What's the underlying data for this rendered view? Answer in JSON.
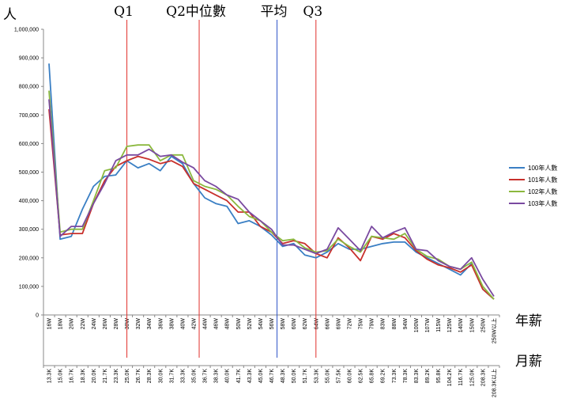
{
  "chart_data": {
    "type": "line",
    "y_unit_label": "人",
    "x_label_top": "年薪",
    "x_label_bottom": "月薪",
    "ylim": [
      0,
      1000000
    ],
    "y_ticks": [
      "0",
      "100,000",
      "200,000",
      "300,000",
      "400,000",
      "500,000",
      "600,000",
      "700,000",
      "800,000",
      "900,000",
      "1,000,000"
    ],
    "x_annual": [
      "16W",
      "18W",
      "20W",
      "22W",
      "24W",
      "26W",
      "28W",
      "30W",
      "32W",
      "34W",
      "36W",
      "38W",
      "40W",
      "42W",
      "44W",
      "46W",
      "48W",
      "50W",
      "52W",
      "54W",
      "56W",
      "58W",
      "60W",
      "62W",
      "64W",
      "66W",
      "69W",
      "72W",
      "75W",
      "79W",
      "83W",
      "88W",
      "94W",
      "100W",
      "107W",
      "115W",
      "125W",
      "140W",
      "150W",
      "250W",
      "250W以上"
    ],
    "x_monthly": [
      "13.3K",
      "15.0K",
      "16.7K",
      "18.3K",
      "20.0K",
      "21.7K",
      "23.3K",
      "25.0K",
      "26.7K",
      "28.3K",
      "30.0K",
      "31.7K",
      "33.3K",
      "35.0K",
      "36.7K",
      "38.3K",
      "40.0K",
      "41.7K",
      "43.3K",
      "45.0K",
      "46.7K",
      "48.3K",
      "50.0K",
      "51.7K",
      "53.3K",
      "55.0K",
      "57.5K",
      "60.0K",
      "62.5K",
      "65.8K",
      "69.2K",
      "73.3K",
      "78.3K",
      "83.3K",
      "89.2K",
      "95.8K",
      "104.2K",
      "116.7K",
      "125.0K",
      "208.3K",
      "208.3K以上"
    ],
    "reference_lines": [
      {
        "label": "Q1",
        "x_index": 7,
        "color": "#e0302c"
      },
      {
        "label": "Q2中位數",
        "x_index": 13.5,
        "color": "#e0302c"
      },
      {
        "label": "平均",
        "x_index": 20.5,
        "color": "#2f54c8"
      },
      {
        "label": "Q3",
        "x_index": 24,
        "color": "#e0302c"
      }
    ],
    "series": [
      {
        "name": "100年人數",
        "color": "#3a7fc4",
        "values": [
          880000,
          265000,
          275000,
          370000,
          450000,
          485000,
          490000,
          540000,
          515000,
          530000,
          505000,
          555000,
          530000,
          460000,
          410000,
          390000,
          380000,
          320000,
          330000,
          310000,
          280000,
          240000,
          250000,
          210000,
          200000,
          220000,
          250000,
          230000,
          230000,
          240000,
          250000,
          255000,
          255000,
          220000,
          200000,
          180000,
          160000,
          140000,
          180000,
          90000,
          55000
        ]
      },
      {
        "name": "101年人數",
        "color": "#c8302c",
        "values": [
          720000,
          280000,
          285000,
          285000,
          390000,
          470000,
          520000,
          540000,
          555000,
          545000,
          530000,
          540000,
          520000,
          460000,
          440000,
          420000,
          400000,
          360000,
          360000,
          310000,
          290000,
          250000,
          260000,
          250000,
          215000,
          200000,
          270000,
          235000,
          190000,
          275000,
          265000,
          285000,
          270000,
          225000,
          195000,
          175000,
          165000,
          150000,
          175000,
          90000,
          55000
        ]
      },
      {
        "name": "102年人數",
        "color": "#8bb83e",
        "values": [
          785000,
          290000,
          300000,
          300000,
          400000,
          505000,
          515000,
          590000,
          595000,
          595000,
          540000,
          560000,
          560000,
          470000,
          450000,
          440000,
          420000,
          380000,
          345000,
          330000,
          290000,
          260000,
          265000,
          235000,
          220000,
          225000,
          265000,
          240000,
          220000,
          275000,
          270000,
          265000,
          285000,
          230000,
          205000,
          195000,
          170000,
          160000,
          185000,
          100000,
          55000
        ]
      },
      {
        "name": "103年人數",
        "color": "#7a4aa0",
        "values": [
          755000,
          275000,
          310000,
          310000,
          390000,
          460000,
          540000,
          560000,
          560000,
          580000,
          555000,
          560000,
          535000,
          515000,
          470000,
          450000,
          420000,
          405000,
          360000,
          330000,
          300000,
          245000,
          245000,
          230000,
          215000,
          230000,
          305000,
          265000,
          225000,
          310000,
          270000,
          290000,
          305000,
          230000,
          225000,
          190000,
          170000,
          160000,
          200000,
          125000,
          65000
        ]
      }
    ],
    "legend_placement": "right",
    "grid": false
  }
}
